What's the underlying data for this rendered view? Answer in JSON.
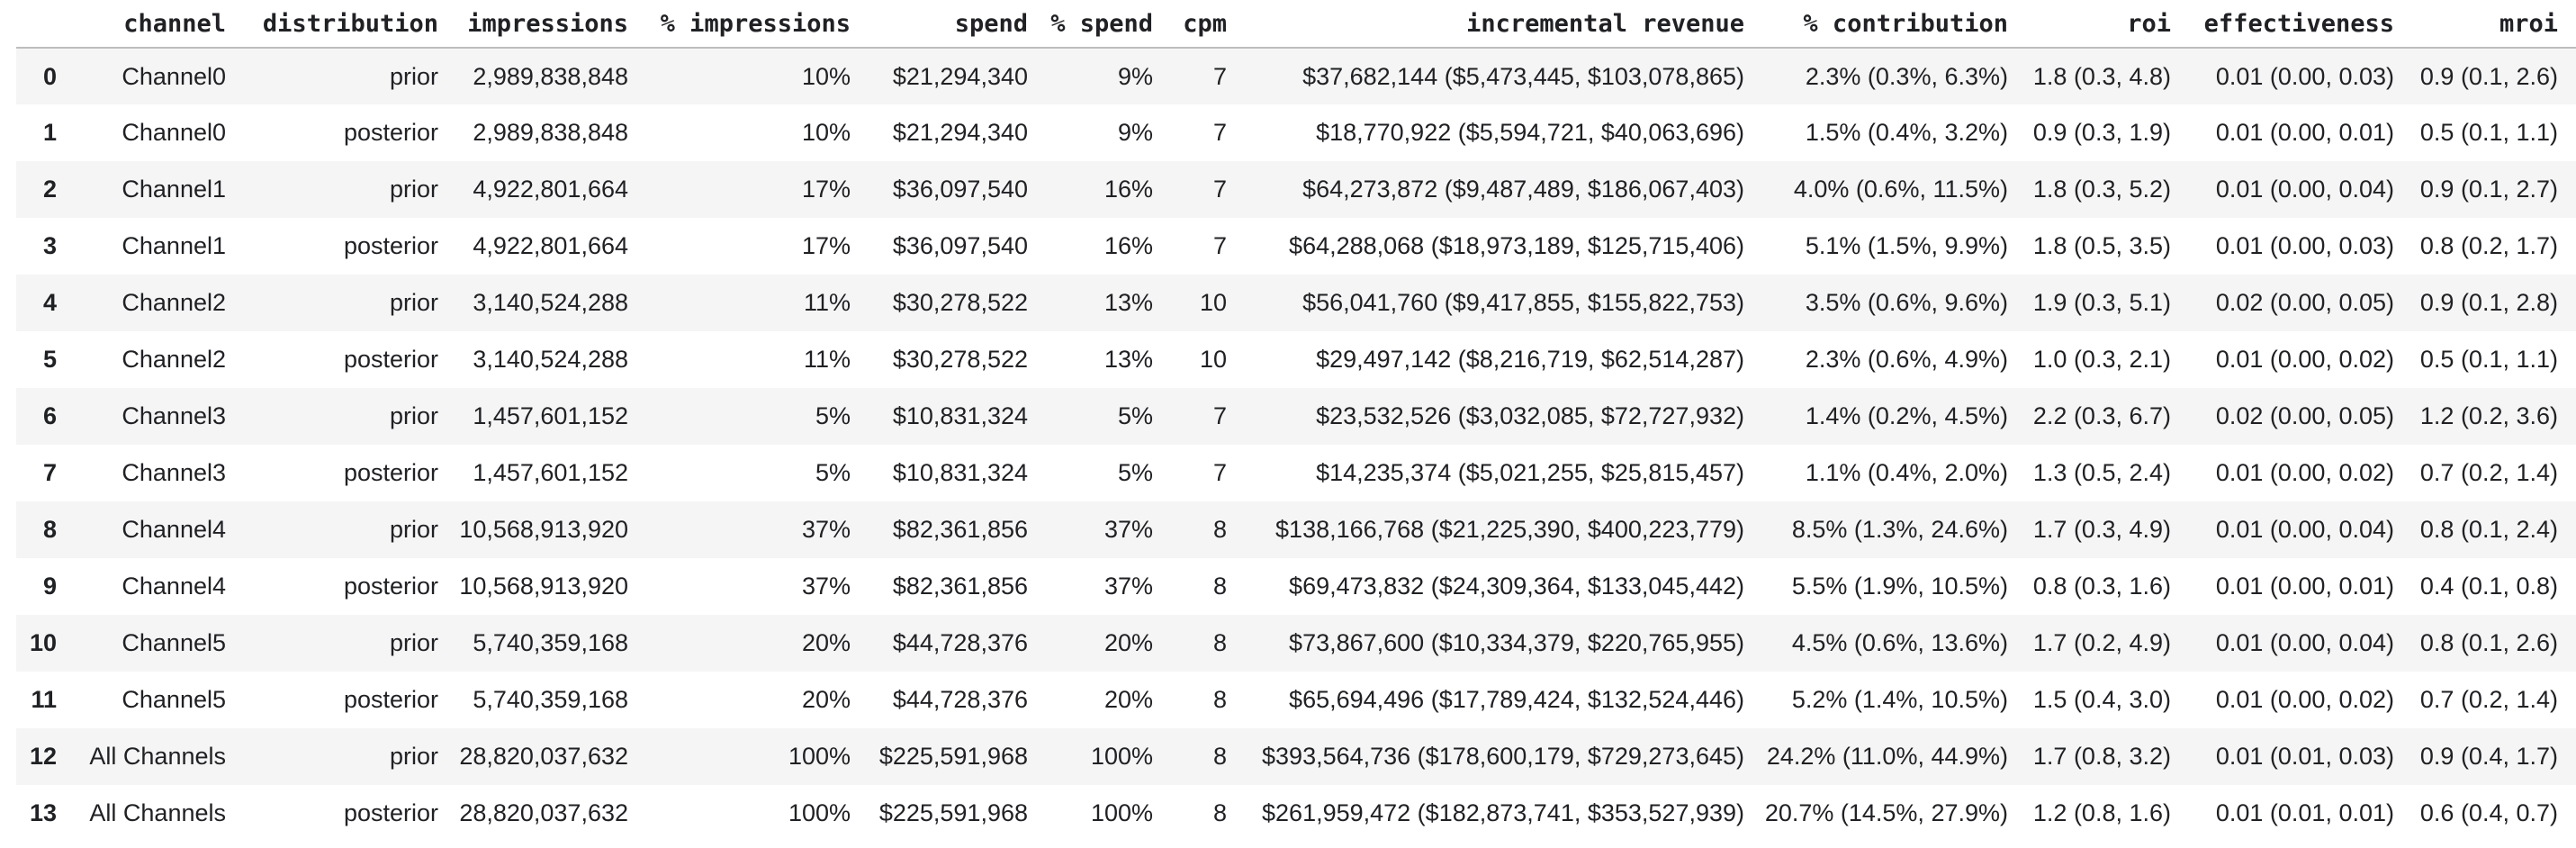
{
  "colors": {
    "text": "#202124",
    "row_stripe": "#f5f5f5",
    "header_border": "#bdbdbd",
    "background": "#ffffff"
  },
  "table": {
    "index_header": "",
    "columns": [
      "channel",
      "distribution",
      "impressions",
      "% impressions",
      "spend",
      "% spend",
      "cpm",
      "incremental revenue",
      "% contribution",
      "roi",
      "effectiveness",
      "mroi"
    ],
    "rows": [
      {
        "index": "0",
        "cells": [
          "Channel0",
          "prior",
          "2,989,838,848",
          "10%",
          "$21,294,340",
          "9%",
          "7",
          "$37,682,144 ($5,473,445, $103,078,865)",
          "2.3% (0.3%, 6.3%)",
          "1.8 (0.3, 4.8)",
          "0.01 (0.00, 0.03)",
          "0.9 (0.1, 2.6)"
        ]
      },
      {
        "index": "1",
        "cells": [
          "Channel0",
          "posterior",
          "2,989,838,848",
          "10%",
          "$21,294,340",
          "9%",
          "7",
          "$18,770,922 ($5,594,721, $40,063,696)",
          "1.5% (0.4%, 3.2%)",
          "0.9 (0.3, 1.9)",
          "0.01 (0.00, 0.01)",
          "0.5 (0.1, 1.1)"
        ]
      },
      {
        "index": "2",
        "cells": [
          "Channel1",
          "prior",
          "4,922,801,664",
          "17%",
          "$36,097,540",
          "16%",
          "7",
          "$64,273,872 ($9,487,489, $186,067,403)",
          "4.0% (0.6%, 11.5%)",
          "1.8 (0.3, 5.2)",
          "0.01 (0.00, 0.04)",
          "0.9 (0.1, 2.7)"
        ]
      },
      {
        "index": "3",
        "cells": [
          "Channel1",
          "posterior",
          "4,922,801,664",
          "17%",
          "$36,097,540",
          "16%",
          "7",
          "$64,288,068 ($18,973,189, $125,715,406)",
          "5.1% (1.5%, 9.9%)",
          "1.8 (0.5, 3.5)",
          "0.01 (0.00, 0.03)",
          "0.8 (0.2, 1.7)"
        ]
      },
      {
        "index": "4",
        "cells": [
          "Channel2",
          "prior",
          "3,140,524,288",
          "11%",
          "$30,278,522",
          "13%",
          "10",
          "$56,041,760 ($9,417,855, $155,822,753)",
          "3.5% (0.6%, 9.6%)",
          "1.9 (0.3, 5.1)",
          "0.02 (0.00, 0.05)",
          "0.9 (0.1, 2.8)"
        ]
      },
      {
        "index": "5",
        "cells": [
          "Channel2",
          "posterior",
          "3,140,524,288",
          "11%",
          "$30,278,522",
          "13%",
          "10",
          "$29,497,142 ($8,216,719, $62,514,287)",
          "2.3% (0.6%, 4.9%)",
          "1.0 (0.3, 2.1)",
          "0.01 (0.00, 0.02)",
          "0.5 (0.1, 1.1)"
        ]
      },
      {
        "index": "6",
        "cells": [
          "Channel3",
          "prior",
          "1,457,601,152",
          "5%",
          "$10,831,324",
          "5%",
          "7",
          "$23,532,526 ($3,032,085, $72,727,932)",
          "1.4% (0.2%, 4.5%)",
          "2.2 (0.3, 6.7)",
          "0.02 (0.00, 0.05)",
          "1.2 (0.2, 3.6)"
        ]
      },
      {
        "index": "7",
        "cells": [
          "Channel3",
          "posterior",
          "1,457,601,152",
          "5%",
          "$10,831,324",
          "5%",
          "7",
          "$14,235,374 ($5,021,255, $25,815,457)",
          "1.1% (0.4%, 2.0%)",
          "1.3 (0.5, 2.4)",
          "0.01 (0.00, 0.02)",
          "0.7 (0.2, 1.4)"
        ]
      },
      {
        "index": "8",
        "cells": [
          "Channel4",
          "prior",
          "10,568,913,920",
          "37%",
          "$82,361,856",
          "37%",
          "8",
          "$138,166,768 ($21,225,390, $400,223,779)",
          "8.5% (1.3%, 24.6%)",
          "1.7 (0.3, 4.9)",
          "0.01 (0.00, 0.04)",
          "0.8 (0.1, 2.4)"
        ]
      },
      {
        "index": "9",
        "cells": [
          "Channel4",
          "posterior",
          "10,568,913,920",
          "37%",
          "$82,361,856",
          "37%",
          "8",
          "$69,473,832 ($24,309,364, $133,045,442)",
          "5.5% (1.9%, 10.5%)",
          "0.8 (0.3, 1.6)",
          "0.01 (0.00, 0.01)",
          "0.4 (0.1, 0.8)"
        ]
      },
      {
        "index": "10",
        "cells": [
          "Channel5",
          "prior",
          "5,740,359,168",
          "20%",
          "$44,728,376",
          "20%",
          "8",
          "$73,867,600 ($10,334,379, $220,765,955)",
          "4.5% (0.6%, 13.6%)",
          "1.7 (0.2, 4.9)",
          "0.01 (0.00, 0.04)",
          "0.8 (0.1, 2.6)"
        ]
      },
      {
        "index": "11",
        "cells": [
          "Channel5",
          "posterior",
          "5,740,359,168",
          "20%",
          "$44,728,376",
          "20%",
          "8",
          "$65,694,496 ($17,789,424, $132,524,446)",
          "5.2% (1.4%, 10.5%)",
          "1.5 (0.4, 3.0)",
          "0.01 (0.00, 0.02)",
          "0.7 (0.2, 1.4)"
        ]
      },
      {
        "index": "12",
        "cells": [
          "All Channels",
          "prior",
          "28,820,037,632",
          "100%",
          "$225,591,968",
          "100%",
          "8",
          "$393,564,736 ($178,600,179, $729,273,645)",
          "24.2% (11.0%, 44.9%)",
          "1.7 (0.8, 3.2)",
          "0.01 (0.01, 0.03)",
          "0.9 (0.4, 1.7)"
        ]
      },
      {
        "index": "13",
        "cells": [
          "All Channels",
          "posterior",
          "28,820,037,632",
          "100%",
          "$225,591,968",
          "100%",
          "8",
          "$261,959,472 ($182,873,741, $353,527,939)",
          "20.7% (14.5%, 27.9%)",
          "1.2 (0.8, 1.6)",
          "0.01 (0.01, 0.01)",
          "0.6 (0.4, 0.7)"
        ]
      }
    ]
  }
}
